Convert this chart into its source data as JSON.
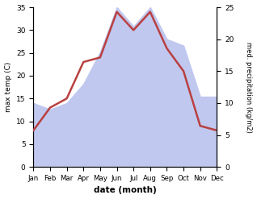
{
  "months": [
    "Jan",
    "Feb",
    "Mar",
    "Apr",
    "May",
    "Jun",
    "Jul",
    "Aug",
    "Sep",
    "Oct",
    "Nov",
    "Dec"
  ],
  "temperature": [
    8,
    13,
    15,
    23,
    24,
    34,
    30,
    34,
    26,
    21,
    9,
    8
  ],
  "precipitation": [
    10,
    9,
    10,
    13,
    18,
    25,
    22,
    25,
    20,
    19,
    11,
    11
  ],
  "temp_color": "#b94040",
  "precip_fill_color": "#c0c8f0",
  "temp_ylim": [
    0,
    35
  ],
  "precip_ylim": [
    0,
    25
  ],
  "xlabel": "date (month)",
  "ylabel_left": "max temp (C)",
  "ylabel_right": "med. precipitation (kg/m2)",
  "bg_color": "#ffffff"
}
